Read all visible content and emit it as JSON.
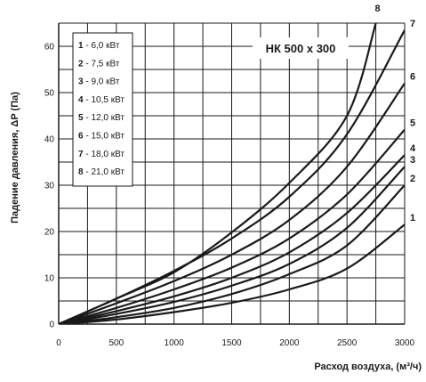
{
  "chart_data": {
    "type": "line",
    "title": "НК 500 х 300",
    "xlabel": "Расход воздуха, (м³/ч)",
    "ylabel": "Падение давления, ΔP (Па)",
    "xlim": [
      0,
      3000
    ],
    "ylim": [
      0,
      65
    ],
    "x_ticks": [
      0,
      500,
      1000,
      1500,
      2000,
      2500,
      3000
    ],
    "y_ticks": [
      0,
      10,
      20,
      30,
      40,
      50,
      60
    ],
    "grid": true,
    "legend_position": "top-left",
    "curve_color": "#1a1a1a",
    "series": [
      {
        "label": "1",
        "legend": "6,0 кВт",
        "x": [
          0,
          500,
          1000,
          1500,
          2000,
          2500,
          3000
        ],
        "y": [
          0,
          1.0,
          2.6,
          4.6,
          7.5,
          12.0,
          21.5
        ]
      },
      {
        "label": "2",
        "legend": "7,5 кВт",
        "x": [
          0,
          500,
          1000,
          1500,
          2000,
          2500,
          3000
        ],
        "y": [
          0,
          1.5,
          3.5,
          6.5,
          10.8,
          17.0,
          30.0
        ]
      },
      {
        "label": "3",
        "legend": "9,0 кВт",
        "x": [
          0,
          500,
          1000,
          1500,
          2000,
          2500,
          3000
        ],
        "y": [
          0,
          2.2,
          4.8,
          8.3,
          13.0,
          20.8,
          34.0
        ]
      },
      {
        "label": "4",
        "legend": "10,5 кВт",
        "x": [
          0,
          500,
          1000,
          1500,
          2000,
          2500,
          3000
        ],
        "y": [
          0,
          2.8,
          6.0,
          10.0,
          15.5,
          24.0,
          36.5
        ]
      },
      {
        "label": "5",
        "legend": "12,0 кВт",
        "x": [
          0,
          500,
          1000,
          1500,
          2000,
          2500,
          3000
        ],
        "y": [
          0,
          3.5,
          7.5,
          12.2,
          18.5,
          28.0,
          42.0
        ]
      },
      {
        "label": "6",
        "legend": "15,0 кВт",
        "x": [
          0,
          500,
          1000,
          1500,
          2000,
          2500,
          3000
        ],
        "y": [
          0,
          4.5,
          9.3,
          15.0,
          22.5,
          34.0,
          52.0
        ]
      },
      {
        "label": "7",
        "legend": "18,0 кВт",
        "x": [
          0,
          500,
          1000,
          1500,
          2000,
          2500,
          3000
        ],
        "y": [
          0,
          5.5,
          11.5,
          18.5,
          27.5,
          41.0,
          63.5
        ]
      },
      {
        "label": "8",
        "legend": "21,0 кВт",
        "x": [
          0,
          500,
          1000,
          1500,
          2000,
          2500,
          2750
        ],
        "y": [
          0,
          5.5,
          11.2,
          19.8,
          30.5,
          45.0,
          65.0
        ]
      }
    ]
  }
}
